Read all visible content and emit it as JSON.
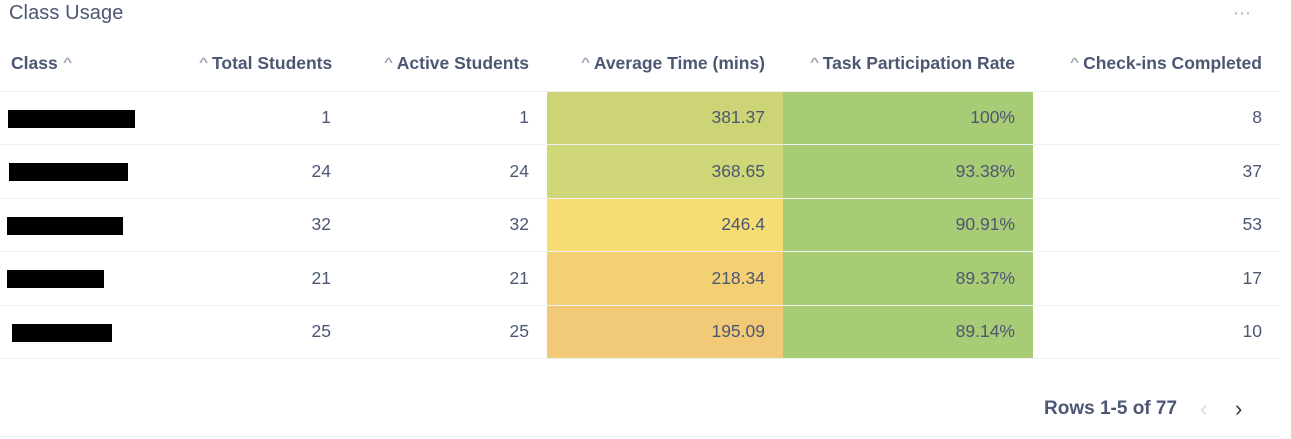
{
  "card": {
    "title": "Class Usage",
    "more_icon": "⋯"
  },
  "columns": [
    {
      "label": "Class",
      "sort_icon": "^"
    },
    {
      "label": "Total Students",
      "sort_icon": "^"
    },
    {
      "label": "Active Students",
      "sort_icon": "^"
    },
    {
      "label": "Average Time (mins)",
      "sort_icon": "^"
    },
    {
      "label": "Task Participation Rate",
      "sort_icon": "^"
    },
    {
      "label": "Check-ins Completed",
      "sort_icon": "^"
    }
  ],
  "rows": [
    {
      "total": "1",
      "active": "1",
      "avg_time": "381.37",
      "participation": "100%",
      "checkins": "8",
      "avg_color": "#cdd475",
      "part_color": "#a8cc76"
    },
    {
      "total": "24",
      "active": "24",
      "avg_time": "368.65",
      "participation": "93.38%",
      "checkins": "37",
      "avg_color": "#cfd677",
      "part_color": "#a8cc76"
    },
    {
      "total": "32",
      "active": "32",
      "avg_time": "246.4",
      "participation": "90.91%",
      "checkins": "53",
      "avg_color": "#f5dc74",
      "part_color": "#a8cc76"
    },
    {
      "total": "21",
      "active": "21",
      "avg_time": "218.34",
      "participation": "89.37%",
      "checkins": "17",
      "avg_color": "#f4d075",
      "part_color": "#a8cc76"
    },
    {
      "total": "25",
      "active": "25",
      "avg_time": "195.09",
      "participation": "89.14%",
      "checkins": "10",
      "avg_color": "#f2c976",
      "part_color": "#a8cc76"
    }
  ],
  "pagination": {
    "label": "Rows 1-5 of 77",
    "prev_icon": "‹",
    "next_icon": "›"
  }
}
